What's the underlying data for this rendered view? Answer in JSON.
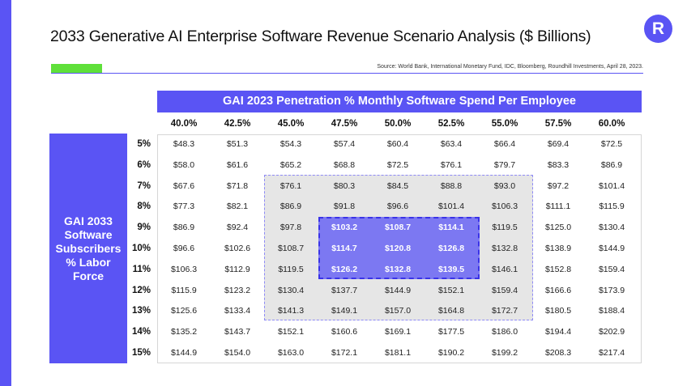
{
  "title": "2033 Generative AI Enterprise Software Revenue Scenario Analysis ($ Billions)",
  "logo_letter": "R",
  "source": "Source: World Bank, International Monetary Fund, IDC, Bloomberg, Roundhill Investments, April 28, 2023.",
  "column_header_title": "GAI 2023 Penetration % Monthly Software Spend Per Employee",
  "row_header_title": "GAI 2033\nSoftware\nSubscribers\n% Labor\nForce",
  "columns": [
    "40.0%",
    "42.5%",
    "45.0%",
    "47.5%",
    "50.0%",
    "52.5%",
    "55.0%",
    "57.5%",
    "60.0%"
  ],
  "rows": [
    {
      "label": "5%",
      "values": [
        "$48.3",
        "$51.3",
        "$54.3",
        "$57.4",
        "$60.4",
        "$63.4",
        "$66.4",
        "$69.4",
        "$72.5"
      ]
    },
    {
      "label": "6%",
      "values": [
        "$58.0",
        "$61.6",
        "$65.2",
        "$68.8",
        "$72.5",
        "$76.1",
        "$79.7",
        "$83.3",
        "$86.9"
      ]
    },
    {
      "label": "7%",
      "values": [
        "$67.6",
        "$71.8",
        "$76.1",
        "$80.3",
        "$84.5",
        "$88.8",
        "$93.0",
        "$97.2",
        "$101.4"
      ]
    },
    {
      "label": "8%",
      "values": [
        "$77.3",
        "$82.1",
        "$86.9",
        "$91.8",
        "$96.6",
        "$101.4",
        "$106.3",
        "$111.1",
        "$115.9"
      ]
    },
    {
      "label": "9%",
      "values": [
        "$86.9",
        "$92.4",
        "$97.8",
        "$103.2",
        "$108.7",
        "$114.1",
        "$119.5",
        "$125.0",
        "$130.4"
      ]
    },
    {
      "label": "10%",
      "values": [
        "$96.6",
        "$102.6",
        "$108.7",
        "$114.7",
        "$120.8",
        "$126.8",
        "$132.8",
        "$138.9",
        "$144.9"
      ]
    },
    {
      "label": "11%",
      "values": [
        "$106.3",
        "$112.9",
        "$119.5",
        "$126.2",
        "$132.8",
        "$139.5",
        "$146.1",
        "$152.8",
        "$159.4"
      ]
    },
    {
      "label": "12%",
      "values": [
        "$115.9",
        "$123.2",
        "$130.4",
        "$137.7",
        "$144.9",
        "$152.1",
        "$159.4",
        "$166.6",
        "$173.9"
      ]
    },
    {
      "label": "13%",
      "values": [
        "$125.6",
        "$133.4",
        "$141.3",
        "$149.1",
        "$157.0",
        "$164.8",
        "$172.7",
        "$180.5",
        "$188.4"
      ]
    },
    {
      "label": "14%",
      "values": [
        "$135.2",
        "$143.7",
        "$152.1",
        "$160.6",
        "$169.1",
        "$177.5",
        "$186.0",
        "$194.4",
        "$202.9"
      ]
    },
    {
      "label": "15%",
      "values": [
        "$144.9",
        "$154.0",
        "$163.0",
        "$172.1",
        "$181.1",
        "$190.2",
        "$199.2",
        "$208.3",
        "$217.4"
      ]
    }
  ],
  "highlight": {
    "inner": {
      "row_start": 4,
      "row_end": 6,
      "col_start": 3,
      "col_end": 5
    },
    "middle": {
      "row_start": 2,
      "row_end": 8,
      "col_start": 2,
      "col_end": 6
    }
  },
  "colors": {
    "accent": "#5a54f4",
    "green": "#5fe03a",
    "middle_zone": "#e6e6e6",
    "inner_zone": "#7c78f2"
  }
}
